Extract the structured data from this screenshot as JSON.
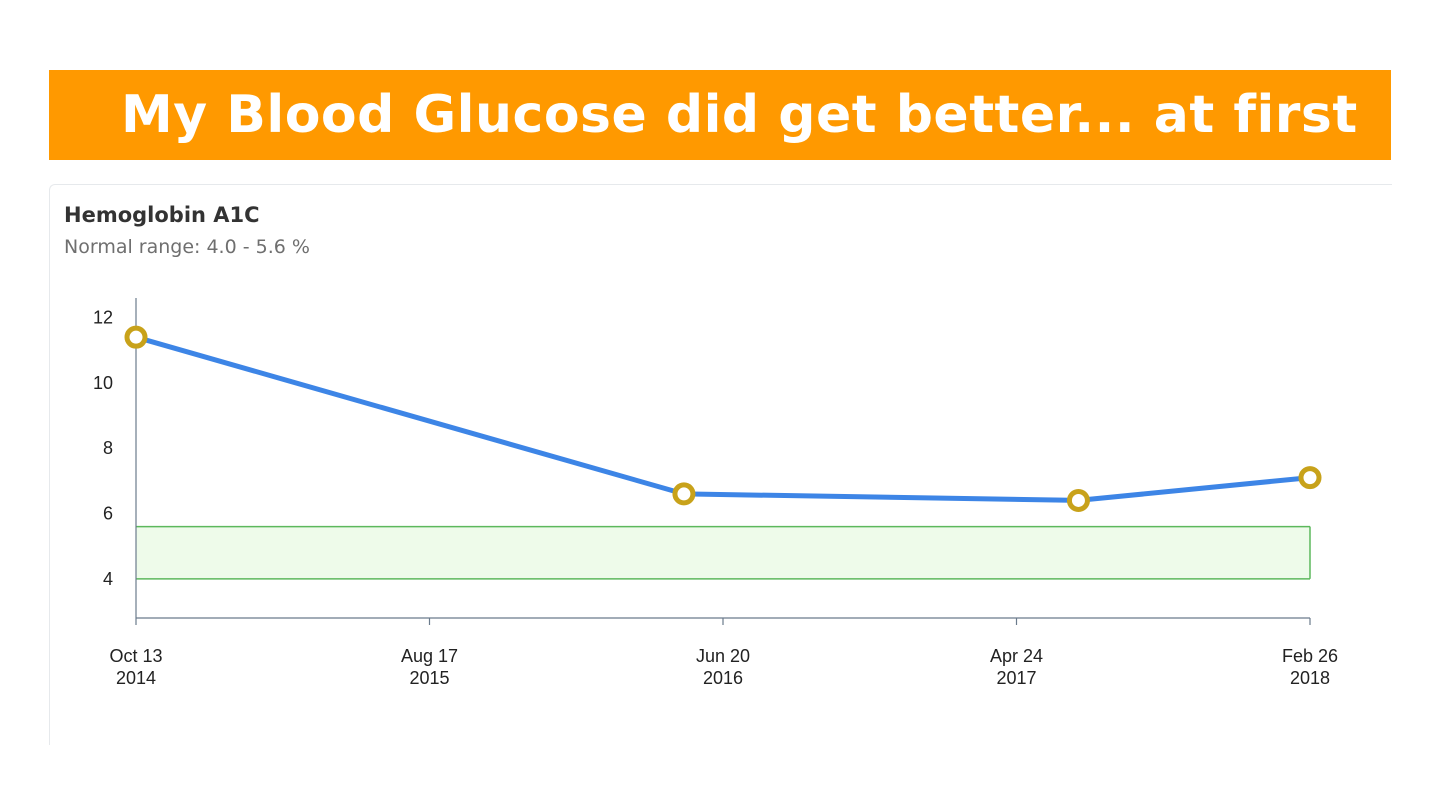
{
  "banner": {
    "title": "My Blood Glucose did get better... at first"
  },
  "card": {
    "title": "Hemoglobin A1C",
    "subtitle": "Normal range: 4.0 - 5.6 %"
  },
  "colors": {
    "banner": "#ff9900",
    "line": "#3d85e6",
    "point_fill": "#ffffff",
    "point_stroke": "#c8a21a",
    "range_fill": "#eefbea",
    "range_stroke": "#5cb85c",
    "axis": "#6b7b8c"
  },
  "chart_data": {
    "type": "line",
    "title": "Hemoglobin A1C",
    "subtitle": "Normal range: 4.0 - 5.6 %",
    "xlabel": "",
    "ylabel": "",
    "x_type": "date",
    "xlim": [
      "2014-10-13",
      "2018-02-26"
    ],
    "ylim": [
      2.8,
      12.6
    ],
    "yticks": [
      4,
      6,
      8,
      10,
      12
    ],
    "xticks": [
      {
        "date": "2014-10-13",
        "line1": "Oct 13",
        "line2": "2014"
      },
      {
        "date": "2015-08-17",
        "line1": "Aug 17",
        "line2": "2015"
      },
      {
        "date": "2016-06-20",
        "line1": "Jun 20",
        "line2": "2016"
      },
      {
        "date": "2017-04-24",
        "line1": "Apr 24",
        "line2": "2017"
      },
      {
        "date": "2018-02-26",
        "line1": "Feb 26",
        "line2": "2018"
      }
    ],
    "normal_range": [
      4.0,
      5.6
    ],
    "series": [
      {
        "points": [
          {
            "x": "2014-10-13",
            "y": 11.4
          },
          {
            "x": "2016-05-10",
            "y": 6.6
          },
          {
            "x": "2017-06-28",
            "y": 6.4
          },
          {
            "x": "2018-02-26",
            "y": 7.1
          }
        ]
      }
    ],
    "grid": false,
    "legend": "none"
  }
}
